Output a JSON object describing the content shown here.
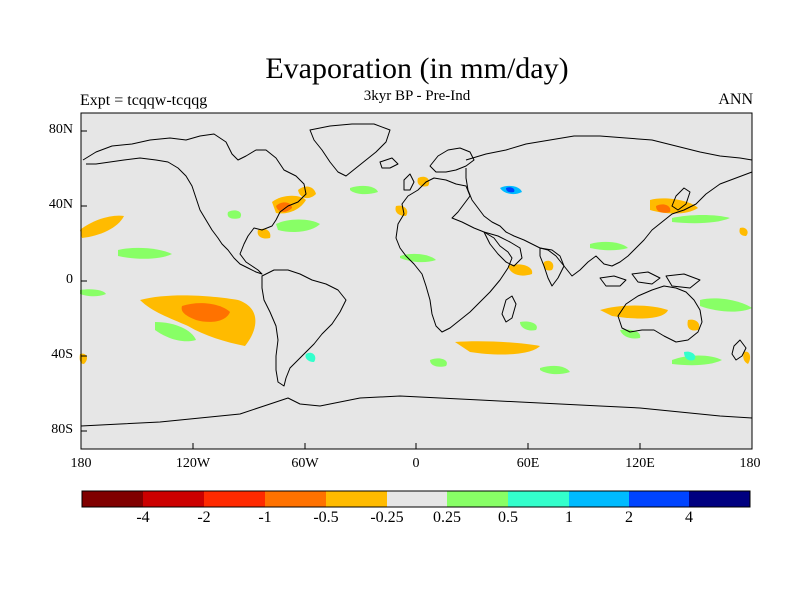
{
  "map": {
    "title": "Evaporation (in mm/day)",
    "subtitle": "3kyr BP - Pre-Ind",
    "experiment_label": "Expt = tcqqw-tcqqg",
    "season_label": "ANN",
    "projection": "cylindrical equidistant",
    "lon_range": [
      -180,
      180
    ],
    "lat_range": [
      -90,
      90
    ],
    "ocean_land_background_color": "#e6e6e6",
    "coastline_color": "#000000",
    "y_ticks": [
      "80N",
      "40N",
      "0",
      "40S",
      "80S"
    ],
    "x_ticks": [
      "180",
      "120W",
      "60W",
      "0",
      "60E",
      "120E",
      "180"
    ]
  },
  "colorbar": {
    "colors": [
      "#800000",
      "#cc0000",
      "#ff2a00",
      "#ff7200",
      "#ffbb00",
      "#e6e6e6",
      "#88ff66",
      "#33ffcc",
      "#00bbff",
      "#0044ff",
      "#000080"
    ],
    "labels": [
      "-4",
      "-2",
      "-1",
      "-0.5",
      "-0.25",
      "0.25",
      "0.5",
      "1",
      "2",
      "4"
    ]
  }
}
